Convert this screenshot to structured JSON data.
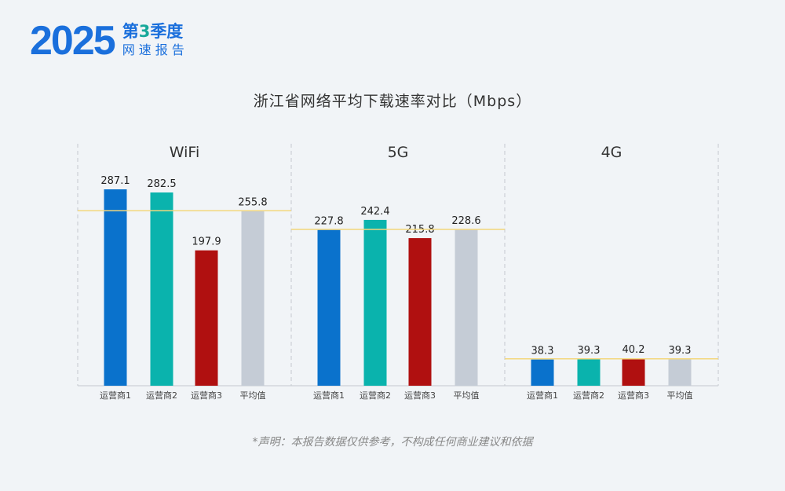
{
  "logo": {
    "year": "2025",
    "quarter_prefix": "第",
    "quarter_num": "3",
    "quarter_suffix": "季度",
    "subtitle": "网速报告"
  },
  "footer": "*声明：本报告数据仅供参考，不构成任何商业建议和依据",
  "chart_data": {
    "type": "bar",
    "title": "浙江省网络平均下载速率对比（Mbps）",
    "categories": [
      "运营商1",
      "运营商2",
      "运营商3",
      "平均值"
    ],
    "colors": [
      "#0a72cc",
      "#0ab3ad",
      "#b01010",
      "#c5ccd6"
    ],
    "avg_line_color": "#f3d77c",
    "groups": [
      {
        "name": "WiFi",
        "values": [
          287.1,
          282.5,
          197.9,
          255.8
        ]
      },
      {
        "name": "5G",
        "values": [
          227.8,
          242.4,
          215.8,
          228.6
        ]
      },
      {
        "name": "4G",
        "values": [
          38.3,
          39.3,
          40.2,
          39.3
        ]
      }
    ],
    "ylim": [
      0,
      350
    ]
  }
}
